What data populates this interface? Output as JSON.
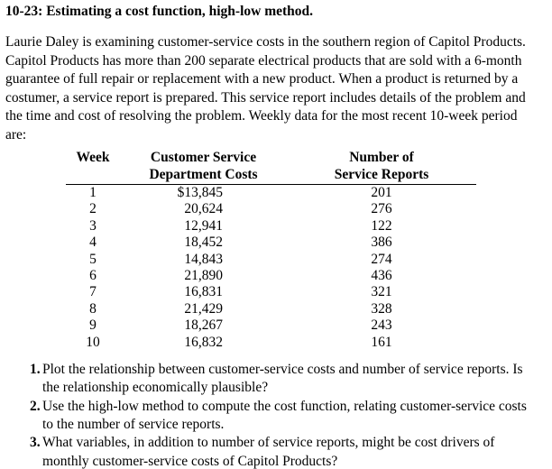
{
  "title": "10-23: Estimating a cost function, high-low method.",
  "intro": "Laurie Daley is examining customer-service costs in the southern region of Capitol Products.\nCapitol Products has more than 200 separate electrical products that are sold with a 6-month\nguarantee of full repair or replacement with a new product. When a product is returned by a\ncostumer, a service report is prepared. This service report includes details of the problem and\nthe time and cost of resolving the problem. Weekly data for the most recent 10-week period\nare:",
  "table": {
    "headers": {
      "week": "Week",
      "costs": "Customer Service\nDepartment Costs",
      "reports": "Number of\nService Reports"
    },
    "rows": [
      {
        "week": "1",
        "cost": "$13,845",
        "reports": "201"
      },
      {
        "week": "2",
        "cost": "20,624",
        "reports": "276"
      },
      {
        "week": "3",
        "cost": "12,941",
        "reports": "122"
      },
      {
        "week": "4",
        "cost": "18,452",
        "reports": "386"
      },
      {
        "week": "5",
        "cost": "14,843",
        "reports": "274"
      },
      {
        "week": "6",
        "cost": "21,890",
        "reports": "436"
      },
      {
        "week": "7",
        "cost": "16,831",
        "reports": "321"
      },
      {
        "week": "8",
        "cost": "21,429",
        "reports": "328"
      },
      {
        "week": "9",
        "cost": "18,267",
        "reports": "243"
      },
      {
        "week": "10",
        "cost": "16,832",
        "reports": "161"
      }
    ]
  },
  "questions": [
    {
      "num": "1.",
      "text": "Plot the relationship between customer-service costs and number of service reports. Is\nthe relationship economically plausible?"
    },
    {
      "num": "2.",
      "text": "Use the high-low method to compute the cost function, relating customer-service costs\nto the number of service reports."
    },
    {
      "num": "3.",
      "text": "What variables, in addition to number of service reports, might be cost drivers of\nmonthly customer-service costs of Capitol Products?"
    }
  ]
}
